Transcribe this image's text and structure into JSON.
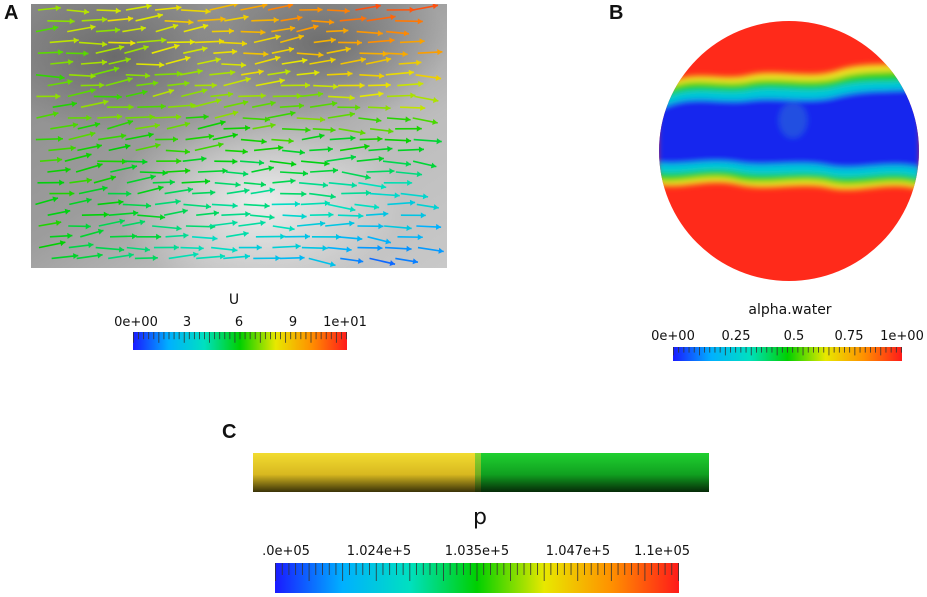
{
  "panels": {
    "a": {
      "letter": "A"
    },
    "b": {
      "letter": "B"
    },
    "c": {
      "letter": "C"
    }
  },
  "colorbar_u": {
    "title": "U",
    "ticks": [
      "0e+00",
      "3",
      "6",
      "9",
      "1e+01"
    ]
  },
  "colorbar_alpha": {
    "title": "alpha.water",
    "ticks": [
      "0e+00",
      "0.25",
      "0.5",
      "0.75",
      "1e+00"
    ]
  },
  "colorbar_p": {
    "title": "p",
    "ticks": [
      ".0e+05",
      "1.024e+5",
      "1.035e+5",
      "1.047e+5",
      "1.1e+05"
    ]
  },
  "colors": {
    "colormap": [
      "#1a1aff",
      "#00b0ff",
      "#00e0c0",
      "#00d000",
      "#e8e800",
      "#ff9000",
      "#ff1a1a"
    ],
    "pipe_left": "#e0c020",
    "pipe_right": "#10c020"
  }
}
